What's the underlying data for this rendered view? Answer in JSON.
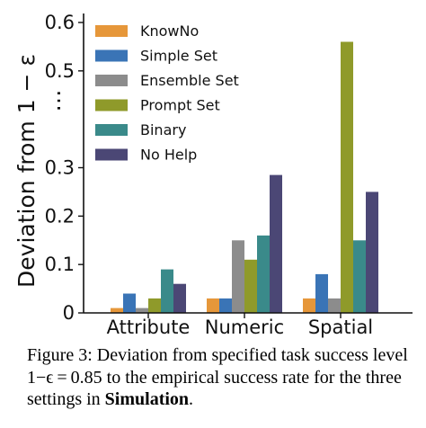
{
  "chart_data": {
    "type": "bar",
    "categories": [
      "Attribute",
      "Numeric",
      "Spatial"
    ],
    "series": [
      {
        "name": "KnowNo",
        "color": "#e6973a",
        "values": [
          0.01,
          0.03,
          0.03
        ]
      },
      {
        "name": "Simple Set",
        "color": "#3a74b6",
        "values": [
          0.04,
          0.03,
          0.08
        ]
      },
      {
        "name": "Ensemble Set",
        "color": "#8c8c8c",
        "values": [
          0.01,
          0.15,
          0.03
        ]
      },
      {
        "name": "Prompt Set",
        "color": "#8f9a2a",
        "values": [
          0.03,
          0.11,
          0.56
        ]
      },
      {
        "name": "Binary",
        "color": "#3a8a8a",
        "values": [
          0.09,
          0.16,
          0.15
        ]
      },
      {
        "name": "No Help",
        "color": "#4b4775",
        "values": [
          0.06,
          0.285,
          0.25
        ]
      }
    ],
    "ylabel": "Deviation from 1 − ε",
    "yticks": [
      "0",
      "0.1",
      "0.2",
      "0.3",
      "0.5",
      "0.6"
    ],
    "ytick_values": [
      0,
      0.1,
      0.2,
      0.3,
      0.5,
      0.6
    ],
    "ylim": [
      0,
      0.6
    ],
    "y_axis_break": "…",
    "legend_position": "top-left",
    "grid": false
  },
  "caption": {
    "prefix": "Figure 3: Deviation from specified task success level 1−ϵ = 0.85 to the empirical success rate for the three settings in ",
    "bold": "Simulation",
    "suffix": "."
  }
}
